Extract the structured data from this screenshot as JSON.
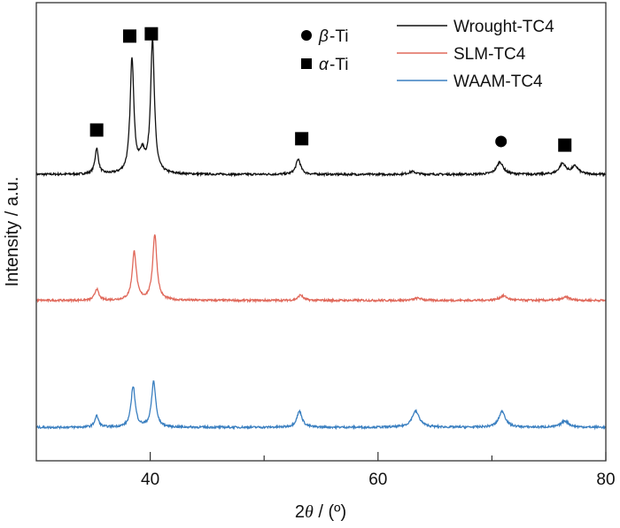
{
  "chart_data": {
    "type": "line",
    "title": "",
    "xlabel_prefix": "2",
    "xlabel_theta": "θ",
    "xlabel_suffix": " / (º)",
    "ylabel": "Intensity / a.u.",
    "xlim": [
      30,
      80
    ],
    "ylim": [
      0,
      100
    ],
    "xticks": [
      40,
      60,
      80
    ],
    "xminor_ticks": [
      50,
      70
    ],
    "grid": false,
    "legend_position": "top-right",
    "series": [
      {
        "name": "Wrought-TC4",
        "color": "#111111",
        "baseline": 62.5,
        "peaks": [
          [
            35.3,
            5.6,
            0.18
          ],
          [
            38.4,
            25,
            0.2
          ],
          [
            39.3,
            4,
            0.3
          ],
          [
            40.2,
            29,
            0.2
          ],
          [
            53.0,
            3.3,
            0.25
          ],
          [
            63.0,
            0.6,
            0.4
          ],
          [
            70.7,
            2.7,
            0.35
          ],
          [
            76.2,
            2.3,
            0.35
          ],
          [
            77.3,
            1.7,
            0.35
          ]
        ]
      },
      {
        "name": "SLM-TC4",
        "color": "#e0685a",
        "baseline": 35,
        "peaks": [
          [
            35.3,
            2.5,
            0.2
          ],
          [
            38.6,
            10.6,
            0.22
          ],
          [
            40.4,
            14.3,
            0.22
          ],
          [
            53.2,
            1.2,
            0.25
          ],
          [
            63.5,
            0.5,
            0.4
          ],
          [
            71.0,
            1.0,
            0.4
          ],
          [
            76.5,
            0.7,
            0.4
          ]
        ]
      },
      {
        "name": "WAAM-TC4",
        "color": "#3a7fc0",
        "baseline": 7.3,
        "peaks": [
          [
            35.3,
            2.5,
            0.2
          ],
          [
            38.5,
            8.9,
            0.22
          ],
          [
            40.3,
            10,
            0.22
          ],
          [
            53.1,
            3.5,
            0.28
          ],
          [
            63.3,
            3.5,
            0.4
          ],
          [
            70.9,
            3.5,
            0.35
          ],
          [
            76.4,
            1.4,
            0.4
          ]
        ]
      }
    ],
    "phase_markers": [
      {
        "phase": "alpha",
        "shape": "square",
        "x": 35.3,
        "y": 72.2
      },
      {
        "phase": "alpha",
        "shape": "square",
        "x": 38.2,
        "y": 92.7
      },
      {
        "phase": "alpha",
        "shape": "square",
        "x": 40.1,
        "y": 93.2
      },
      {
        "phase": "alpha",
        "shape": "square",
        "x": 53.3,
        "y": 70.3
      },
      {
        "phase": "beta",
        "shape": "circle",
        "x": 70.8,
        "y": 69.7
      },
      {
        "phase": "alpha",
        "shape": "square",
        "x": 76.4,
        "y": 68.9
      }
    ],
    "phase_legend": [
      {
        "shape": "circle",
        "symbol": "β",
        "label": "-Ti"
      },
      {
        "shape": "square",
        "symbol": "α",
        "label": "-Ti"
      }
    ]
  }
}
